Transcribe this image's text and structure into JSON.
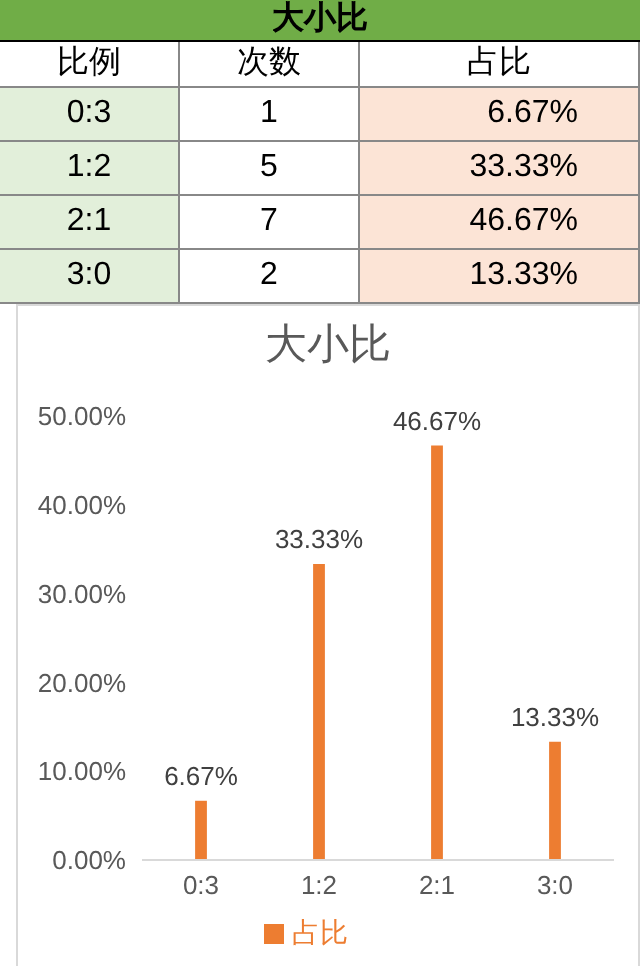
{
  "chart_data": [
    {
      "type": "other",
      "title": "大小比",
      "annotations": [
        "比例",
        "次数",
        "占比",
        "0:3",
        "1",
        "6.67%",
        "1:2",
        "5",
        "33.33%",
        "2:1",
        "7",
        "46.67%",
        "3:0",
        "2",
        "13.33%"
      ]
    },
    {
      "type": "bar",
      "title": "大小比",
      "categories": [
        "0:3",
        "1:2",
        "2:1",
        "3:0"
      ],
      "series": [
        {
          "name": "占比",
          "color": "#ed7d31",
          "values": [
            6.67,
            33.33,
            46.67,
            13.33
          ],
          "value_labels": [
            "6.67%",
            "33.33%",
            "46.67%",
            "13.33%"
          ]
        }
      ],
      "ylim": [
        0,
        50
      ],
      "yticks": [
        {
          "value": 0,
          "label": "0.00%"
        },
        {
          "value": 10,
          "label": "10.00%"
        },
        {
          "value": 20,
          "label": "20.00%"
        },
        {
          "value": 30,
          "label": "30.00%"
        },
        {
          "value": 40,
          "label": "40.00%"
        },
        {
          "value": 50,
          "label": "50.00%"
        }
      ],
      "legend": "bottom"
    }
  ]
}
